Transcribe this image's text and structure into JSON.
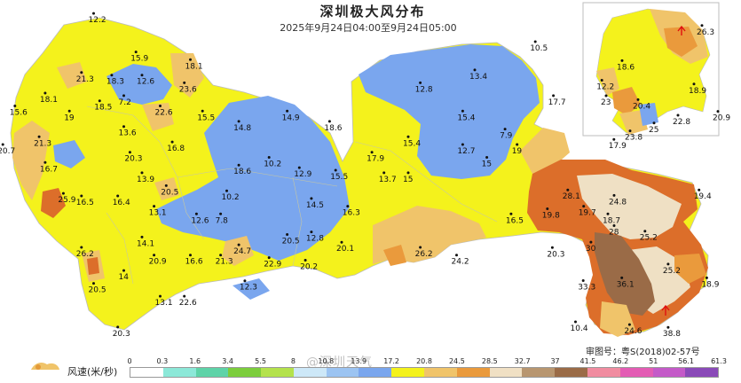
{
  "map": {
    "title": "深圳极大风分布",
    "time_range": "2025年9月24日04:00至9月24日05:00",
    "review_number": "审图号：粤S(2018)02-57号",
    "watermark": "@深圳天气",
    "colors": {
      "yellow": "#f4f21c",
      "blue": "#7aa6ee",
      "orange_light": "#f0c46a",
      "orange": "#ea9a3c",
      "orange_dark": "#dc6e2a",
      "tan": "#efe0c4",
      "brown": "#9a6b47",
      "sea": "#ffffff",
      "border": "#bbbbbb"
    }
  },
  "legend": {
    "label": "风速(米/秒)",
    "ticks": [
      "0",
      "0.3",
      "1.6",
      "3.4",
      "5.5",
      "8",
      "10.8",
      "13.9",
      "17.2",
      "20.8",
      "24.5",
      "28.5",
      "32.7",
      "37",
      "41.5",
      "46.2",
      "51",
      "56.1",
      "61.3"
    ],
    "colors": [
      "#ffffff",
      "#8ce8d8",
      "#5ed3a8",
      "#7ccd3c",
      "#b4e24c",
      "#cde8f8",
      "#9cc4f2",
      "#7aa6ee",
      "#f4f21c",
      "#f0c46a",
      "#ea9a3c",
      "#f0e0c4",
      "#b89670",
      "#9a6b47",
      "#f08ca0",
      "#e35cb4",
      "#c45ac8",
      "#8a4ab8"
    ]
  },
  "stations": [
    {
      "label": "12.2",
      "lon": 113.88,
      "lat": 22.855
    },
    {
      "label": "15.9",
      "lon": 113.95,
      "lat": 22.78
    },
    {
      "label": "18.1",
      "lon": 114.04,
      "lat": 22.765
    },
    {
      "label": "21.3",
      "lon": 113.86,
      "lat": 22.74
    },
    {
      "label": "18.3",
      "lon": 113.91,
      "lat": 22.735
    },
    {
      "label": "12.6",
      "lon": 113.96,
      "lat": 22.735
    },
    {
      "label": "23.6",
      "lon": 114.03,
      "lat": 22.72
    },
    {
      "label": "18.1",
      "lon": 113.8,
      "lat": 22.7
    },
    {
      "label": "7.2",
      "lon": 113.93,
      "lat": 22.695
    },
    {
      "label": "18.5",
      "lon": 113.89,
      "lat": 22.685
    },
    {
      "label": "22.6",
      "lon": 113.99,
      "lat": 22.675
    },
    {
      "label": "15.6",
      "lon": 113.75,
      "lat": 22.675
    },
    {
      "label": "19",
      "lon": 113.84,
      "lat": 22.665
    },
    {
      "label": "15.5",
      "lon": 114.06,
      "lat": 22.665
    },
    {
      "label": "14.8",
      "lon": 114.12,
      "lat": 22.645
    },
    {
      "label": "14.9",
      "lon": 114.2,
      "lat": 22.665
    },
    {
      "label": "18.6",
      "lon": 114.27,
      "lat": 22.645
    },
    {
      "label": "13.6",
      "lon": 113.93,
      "lat": 22.635
    },
    {
      "label": "21.3",
      "lon": 113.79,
      "lat": 22.615
    },
    {
      "label": "20.7",
      "lon": 113.73,
      "lat": 22.6
    },
    {
      "label": "16.8",
      "lon": 114.01,
      "lat": 22.605
    },
    {
      "label": "20.3",
      "lon": 113.94,
      "lat": 22.585
    },
    {
      "label": "10.2",
      "lon": 114.17,
      "lat": 22.575
    },
    {
      "label": "16.7",
      "lon": 113.8,
      "lat": 22.565
    },
    {
      "label": "18.6",
      "lon": 114.12,
      "lat": 22.56
    },
    {
      "label": "12.9",
      "lon": 114.22,
      "lat": 22.555
    },
    {
      "label": "15.5",
      "lon": 114.28,
      "lat": 22.55
    },
    {
      "label": "13.9",
      "lon": 113.96,
      "lat": 22.545
    },
    {
      "label": "20.5",
      "lon": 114.0,
      "lat": 22.52
    },
    {
      "label": "25.9",
      "lon": 113.83,
      "lat": 22.505
    },
    {
      "label": "16.5",
      "lon": 113.86,
      "lat": 22.5
    },
    {
      "label": "16.4",
      "lon": 113.92,
      "lat": 22.5
    },
    {
      "label": "10.2",
      "lon": 114.1,
      "lat": 22.51
    },
    {
      "label": "14.5",
      "lon": 114.24,
      "lat": 22.495
    },
    {
      "label": "13.1",
      "lon": 113.98,
      "lat": 22.48
    },
    {
      "label": "12.6",
      "lon": 114.05,
      "lat": 22.465
    },
    {
      "label": "7.8",
      "lon": 114.09,
      "lat": 22.465
    },
    {
      "label": "12.8",
      "lon": 114.24,
      "lat": 22.43
    },
    {
      "label": "16.3",
      "lon": 114.3,
      "lat": 22.48
    },
    {
      "label": "14.1",
      "lon": 113.96,
      "lat": 22.42
    },
    {
      "label": "24.7",
      "lon": 114.12,
      "lat": 22.405
    },
    {
      "label": "20.5",
      "lon": 114.2,
      "lat": 22.425
    },
    {
      "label": "20.1",
      "lon": 114.29,
      "lat": 22.41
    },
    {
      "label": "26.2",
      "lon": 113.86,
      "lat": 22.4
    },
    {
      "label": "20.9",
      "lon": 113.98,
      "lat": 22.385
    },
    {
      "label": "16.6",
      "lon": 114.04,
      "lat": 22.385
    },
    {
      "label": "21.3",
      "lon": 114.09,
      "lat": 22.385
    },
    {
      "label": "22.9",
      "lon": 114.17,
      "lat": 22.38
    },
    {
      "label": "20.2",
      "lon": 114.23,
      "lat": 22.375
    },
    {
      "label": "14",
      "lon": 113.93,
      "lat": 22.355
    },
    {
      "label": "20.5",
      "lon": 113.88,
      "lat": 22.33
    },
    {
      "label": "12.3",
      "lon": 114.13,
      "lat": 22.335
    },
    {
      "label": "13.1",
      "lon": 113.99,
      "lat": 22.305
    },
    {
      "label": "22.6",
      "lon": 114.03,
      "lat": 22.305
    },
    {
      "label": "20.3",
      "lon": 113.92,
      "lat": 22.245
    },
    {
      "label": "17.9",
      "lon": 114.34,
      "lat": 22.585
    },
    {
      "label": "13.7",
      "lon": 114.36,
      "lat": 22.545
    },
    {
      "label": "15",
      "lon": 114.4,
      "lat": 22.545
    },
    {
      "label": "15.4",
      "lon": 114.4,
      "lat": 22.615
    },
    {
      "label": "12.8",
      "lon": 114.42,
      "lat": 22.72
    },
    {
      "label": "13.4",
      "lon": 114.51,
      "lat": 22.745
    },
    {
      "label": "10.5",
      "lon": 114.61,
      "lat": 22.8
    },
    {
      "label": "15.4",
      "lon": 114.49,
      "lat": 22.665
    },
    {
      "label": "7.9",
      "lon": 114.56,
      "lat": 22.63
    },
    {
      "label": "12.7",
      "lon": 114.49,
      "lat": 22.6
    },
    {
      "label": "19",
      "lon": 114.58,
      "lat": 22.6
    },
    {
      "label": "15",
      "lon": 114.53,
      "lat": 22.575
    },
    {
      "label": "17.7",
      "lon": 114.64,
      "lat": 22.695
    },
    {
      "label": "12.2",
      "lon": 114.72,
      "lat": 22.725
    },
    {
      "label": "17.9",
      "lon": 114.74,
      "lat": 22.61
    },
    {
      "label": "26.2",
      "lon": 114.42,
      "lat": 22.4
    },
    {
      "label": "24.2",
      "lon": 114.48,
      "lat": 22.385
    },
    {
      "label": "16.5",
      "lon": 114.57,
      "lat": 22.465
    },
    {
      "label": "19.8",
      "lon": 114.63,
      "lat": 22.475
    },
    {
      "label": "19.7",
      "lon": 114.69,
      "lat": 22.48
    },
    {
      "label": "18.7",
      "lon": 114.73,
      "lat": 22.465
    },
    {
      "label": "28.1",
      "lon": 114.78,
      "lat": 22.53
    },
    {
      "label": "24.8",
      "lon": 114.84,
      "lat": 22.52
    },
    {
      "label": "19.4",
      "lon": 114.95,
      "lat": 22.53
    },
    {
      "label": "28",
      "lon": 114.84,
      "lat": 22.465
    },
    {
      "label": "25.2",
      "lon": 114.88,
      "lat": 22.455
    },
    {
      "label": "20.3",
      "lon": 114.76,
      "lat": 22.425
    },
    {
      "label": "30",
      "lon": 114.81,
      "lat": 22.435
    },
    {
      "label": "25.2",
      "lon": 114.91,
      "lat": 22.395
    },
    {
      "label": "18.9",
      "lon": 114.96,
      "lat": 22.37
    },
    {
      "label": "33.3",
      "lon": 114.8,
      "lat": 22.365
    },
    {
      "label": "36.1",
      "lon": 114.85,
      "lat": 22.37
    },
    {
      "label": "10.4",
      "lon": 114.79,
      "lat": 22.29
    },
    {
      "label": "24.6",
      "lon": 114.86,
      "lat": 22.285
    },
    {
      "label": "38.8",
      "lon": 114.91,
      "lat": 22.28
    },
    {
      "label": "26.3",
      "lon": 114.98,
      "lat": 22.82
    },
    {
      "label": "18.6",
      "lon": 114.88,
      "lat": 22.775
    },
    {
      "label": "18.9",
      "lon": 114.97,
      "lat": 22.745
    },
    {
      "label": "23",
      "lon": 114.86,
      "lat": 22.73
    },
    {
      "label": "20.4",
      "lon": 114.9,
      "lat": 22.725
    },
    {
      "label": "22.8",
      "lon": 114.95,
      "lat": 22.705
    },
    {
      "label": "20.9",
      "lon": 115.0,
      "lat": 22.71
    },
    {
      "label": "23.8",
      "lon": 114.89,
      "lat": 22.685
    },
    {
      "label": "25",
      "lon": 114.92,
      "lat": 22.695
    }
  ]
}
